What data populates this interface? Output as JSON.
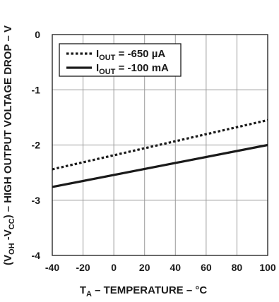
{
  "chart_data": {
    "type": "line",
    "xlabel": "T",
    "xlabel_sub": "A",
    "xlabel_rest": " – TEMPERATURE – °C",
    "ylabel_parts": [
      {
        "t": "(V"
      },
      {
        "t": "OH",
        "sub": true
      },
      {
        "t": " -V"
      },
      {
        "t": "CC",
        "sub": true
      },
      {
        "t": ") – HIGH OUTPUT VOLTAGE DROP – V"
      }
    ],
    "xlim": [
      -40,
      100
    ],
    "ylim": [
      -4,
      0
    ],
    "x_ticks": [
      -40,
      -20,
      0,
      20,
      40,
      60,
      80,
      100
    ],
    "y_ticks": [
      0,
      -1,
      -2,
      -3,
      -4
    ],
    "grid": true,
    "legend_position": "top-left",
    "series": [
      {
        "name": "I",
        "name_sub": "OUT",
        "name_rest": " = -650 µA",
        "style": "dotted",
        "x": [
          -40,
          100
        ],
        "y": [
          -2.44,
          -1.55
        ]
      },
      {
        "name": "I",
        "name_sub": "OUT",
        "name_rest": " = -100 mA",
        "style": "solid",
        "x": [
          -40,
          100
        ],
        "y": [
          -2.76,
          -2.0
        ]
      }
    ],
    "colors": {
      "line": "#1a1a1a",
      "grid": "#9a9a9a",
      "frame": "#1a1a1a"
    }
  }
}
